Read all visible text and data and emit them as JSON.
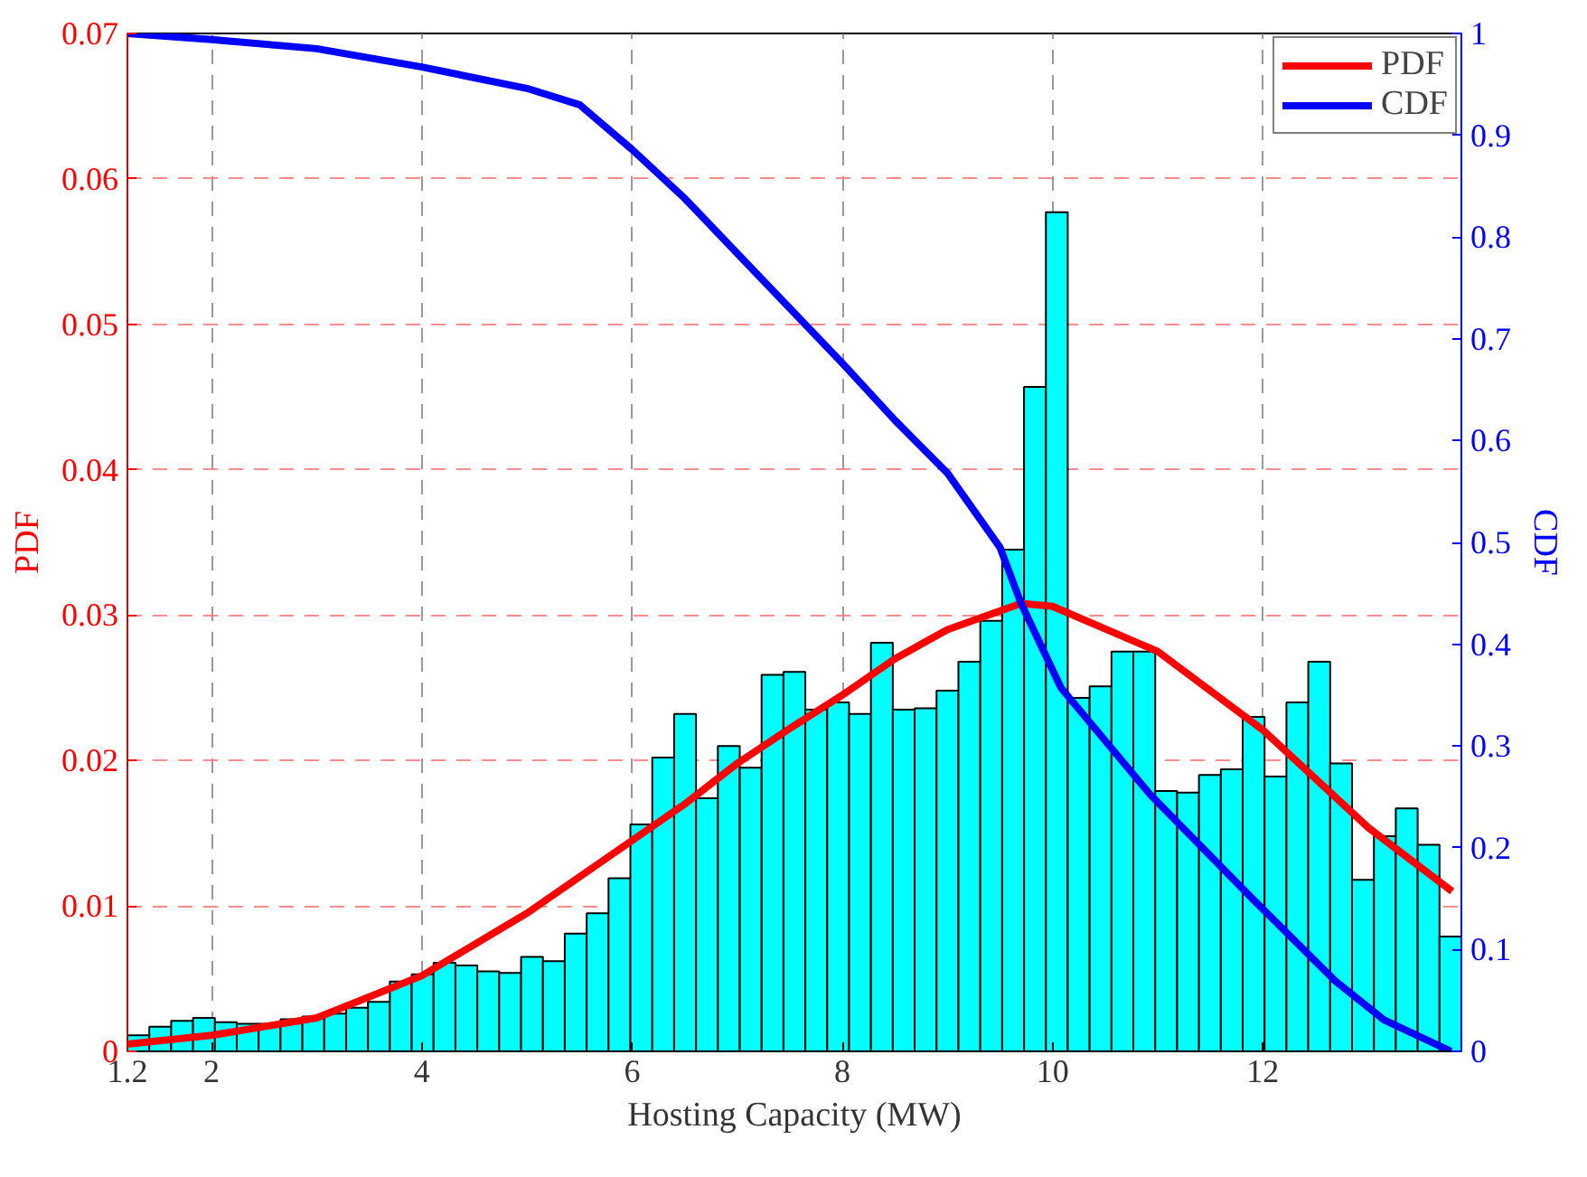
{
  "chart_data": {
    "type": "histogram",
    "xlabel": "Hosting Capacity (MW)",
    "ylabel": "PDF",
    "y2label": "CDF",
    "bins": [
      1.2,
      1.408,
      1.616,
      1.824,
      2.032,
      2.24,
      2.448,
      2.656,
      2.864,
      3.072,
      3.28,
      3.488,
      3.696,
      3.904,
      4.112,
      4.32,
      4.528,
      4.736,
      4.944,
      5.152,
      5.36,
      5.568,
      5.776,
      5.984,
      6.192,
      6.4,
      6.608,
      6.816,
      7.024,
      7.232,
      7.44,
      7.648,
      7.856,
      8.064,
      8.272,
      8.48,
      8.688,
      8.896,
      9.104,
      9.312,
      9.52,
      9.728,
      9.936,
      10.144,
      10.352,
      10.56,
      10.768,
      10.976,
      11.184,
      11.392,
      11.6,
      11.808,
      12.016,
      12.224,
      12.432,
      12.64,
      12.848,
      13.056,
      13.264,
      13.472,
      13.68,
      13.888
    ],
    "values": [
      0.0011,
      0.0017,
      0.0021,
      0.0023,
      0.002,
      0.0019,
      0.0019,
      0.0022,
      0.0024,
      0.0026,
      0.003,
      0.0034,
      0.0048,
      0.0053,
      0.0061,
      0.0059,
      0.0055,
      0.0054,
      0.0065,
      0.0062,
      0.0081,
      0.0095,
      0.0119,
      0.0156,
      0.0202,
      0.0232,
      0.0174,
      0.021,
      0.0195,
      0.0259,
      0.0261,
      0.0235,
      0.024,
      0.0232,
      0.0281,
      0.0235,
      0.0236,
      0.0248,
      0.0268,
      0.0296,
      0.0345,
      0.0457,
      0.0577,
      0.0243,
      0.0251,
      0.0275,
      0.0275,
      0.0179,
      0.0178,
      0.019,
      0.0194,
      0.023,
      0.0189,
      0.024,
      0.0268,
      0.0198,
      0.0118,
      0.0148,
      0.0167,
      0.0142,
      0.0079
    ],
    "color": "#00ffff",
    "series": [
      {
        "name": "PDF",
        "type": "line",
        "color": "#ff0000",
        "x": [
          1.2,
          2,
          3,
          4,
          5,
          6,
          6.5,
          7,
          7.5,
          8,
          8.5,
          9,
          9.7,
          10,
          11,
          12,
          13,
          13.8
        ],
        "values": [
          0.0005,
          0.0011,
          0.0023,
          0.0052,
          0.0095,
          0.0145,
          0.017,
          0.0198,
          0.0222,
          0.0245,
          0.027,
          0.029,
          0.0308,
          0.0306,
          0.0275,
          0.0221,
          0.0154,
          0.011
        ]
      },
      {
        "name": "CDF",
        "type": "line",
        "axis": "y2",
        "color": "#0000ff",
        "x": [
          1.2,
          2,
          3,
          4,
          5,
          5.5,
          6,
          6.5,
          7,
          7.5,
          8,
          8.5,
          9,
          9.5,
          9.7,
          10.08,
          10.93,
          11.9,
          12.69,
          13.15,
          13.79
        ],
        "values": [
          1.0,
          0.994,
          0.985,
          0.967,
          0.946,
          0.93,
          0.886,
          0.838,
          0.784,
          0.73,
          0.676,
          0.62,
          0.568,
          0.495,
          0.44,
          0.357,
          0.252,
          0.15,
          0.069,
          0.031,
          0.0
        ]
      }
    ],
    "xlim": [
      1.2,
      13.888
    ],
    "xticks": [
      1.2,
      2,
      4,
      6,
      8,
      10,
      12
    ],
    "ylim": [
      0,
      0.07
    ],
    "yticks": [
      0,
      0.01,
      0.02,
      0.03,
      0.04,
      0.05,
      0.06,
      0.07
    ],
    "y2lim": [
      0,
      1
    ],
    "y2ticks": [
      0,
      0.1,
      0.2,
      0.3,
      0.4,
      0.5,
      0.6,
      0.7,
      0.8,
      0.9,
      1
    ],
    "grid": true,
    "legend": "top right"
  }
}
